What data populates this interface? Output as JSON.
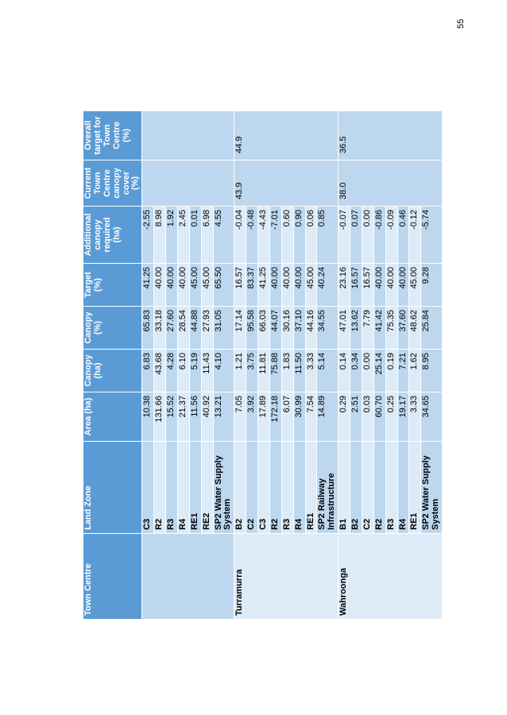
{
  "page_number": "55",
  "headers": [
    "Town Centre",
    "Land Zone",
    "Area (ha)",
    "Canopy (ha)",
    "Canopy (%)",
    "Target (%)",
    "Additional canopy required (ha)",
    "Current Town Centre canopy cover (%)",
    "Overall target for Town Centre (%)"
  ],
  "groups": [
    {
      "town": "",
      "current": "",
      "overall": "",
      "rows": [
        {
          "zone": "C3",
          "area": "10.38",
          "canopy_ha": "6.83",
          "canopy_pct": "65.83",
          "target": "41.25",
          "additional": "-2.55"
        },
        {
          "zone": "R2",
          "area": "131.66",
          "canopy_ha": "43.68",
          "canopy_pct": "33.18",
          "target": "40.00",
          "additional": "8.98"
        },
        {
          "zone": "R3",
          "area": "15.52",
          "canopy_ha": "4.28",
          "canopy_pct": "27.60",
          "target": "40.00",
          "additional": "1.92"
        },
        {
          "zone": "R4",
          "area": "21.37",
          "canopy_ha": "6.10",
          "canopy_pct": "28.54",
          "target": "40.00",
          "additional": "2.45"
        },
        {
          "zone": "RE1",
          "area": "11.56",
          "canopy_ha": "5.19",
          "canopy_pct": "44.88",
          "target": "45.00",
          "additional": "0.01"
        },
        {
          "zone": "RE2",
          "area": "40.92",
          "canopy_ha": "11.43",
          "canopy_pct": "27.93",
          "target": "45.00",
          "additional": "6.98"
        },
        {
          "zone": "SP2 Water Supply System",
          "area": "13.21",
          "canopy_ha": "4.10",
          "canopy_pct": "31.05",
          "target": "65.50",
          "additional": "4.55"
        }
      ]
    },
    {
      "town": "Turramurra",
      "current": "43.9",
      "overall": "44.9",
      "rows": [
        {
          "zone": "B2",
          "area": "7.05",
          "canopy_ha": "1.21",
          "canopy_pct": "17.14",
          "target": "16.57",
          "additional": "-0.04"
        },
        {
          "zone": "C2",
          "area": "3.92",
          "canopy_ha": "3.75",
          "canopy_pct": "95.58",
          "target": "83.37",
          "additional": "-0.48"
        },
        {
          "zone": "C3",
          "area": "17.89",
          "canopy_ha": "11.81",
          "canopy_pct": "66.03",
          "target": "41.25",
          "additional": "-4.43"
        },
        {
          "zone": "R2",
          "area": "172.18",
          "canopy_ha": "75.88",
          "canopy_pct": "44.07",
          "target": "40.00",
          "additional": "-7.01"
        },
        {
          "zone": "R3",
          "area": "6.07",
          "canopy_ha": "1.83",
          "canopy_pct": "30.16",
          "target": "40.00",
          "additional": "0.60"
        },
        {
          "zone": "R4",
          "area": "30.99",
          "canopy_ha": "11.50",
          "canopy_pct": "37.10",
          "target": "40.00",
          "additional": "0.90"
        },
        {
          "zone": "RE1",
          "area": "7.54",
          "canopy_ha": "3.33",
          "canopy_pct": "44.16",
          "target": "45.00",
          "additional": "0.06"
        },
        {
          "zone": "SP2 Railway Infrastructure",
          "area": "14.89",
          "canopy_ha": "5.14",
          "canopy_pct": "34.55",
          "target": "40.24",
          "additional": "0.85"
        }
      ]
    },
    {
      "town": "Wahroonga",
      "current": "38.0",
      "overall": "36.5",
      "rows": [
        {
          "zone": "B1",
          "area": "0.29",
          "canopy_ha": "0.14",
          "canopy_pct": "47.01",
          "target": "23.16",
          "additional": "-0.07"
        },
        {
          "zone": "B2",
          "area": "2.51",
          "canopy_ha": "0.34",
          "canopy_pct": "13.62",
          "target": "16.57",
          "additional": "0.07"
        },
        {
          "zone": "C2",
          "area": "0.03",
          "canopy_ha": "0.00",
          "canopy_pct": "7.79",
          "target": "16.57",
          "additional": "0.00"
        },
        {
          "zone": "R2",
          "area": "60.70",
          "canopy_ha": "25.14",
          "canopy_pct": "41.42",
          "target": "40.00",
          "additional": "-0.86"
        },
        {
          "zone": "R3",
          "area": "0.25",
          "canopy_ha": "0.19",
          "canopy_pct": "75.35",
          "target": "40.00",
          "additional": "-0.09"
        },
        {
          "zone": "R4",
          "area": "19.17",
          "canopy_ha": "7.21",
          "canopy_pct": "37.60",
          "target": "40.00",
          "additional": "0.46"
        },
        {
          "zone": "RE1",
          "area": "3.33",
          "canopy_ha": "1.62",
          "canopy_pct": "48.62",
          "target": "45.00",
          "additional": "-0.12"
        },
        {
          "zone": "SP2 Water Supply System",
          "area": "34.65",
          "canopy_ha": "8.95",
          "canopy_pct": "25.84",
          "target": "9.28",
          "additional": "-5.74"
        }
      ]
    }
  ]
}
